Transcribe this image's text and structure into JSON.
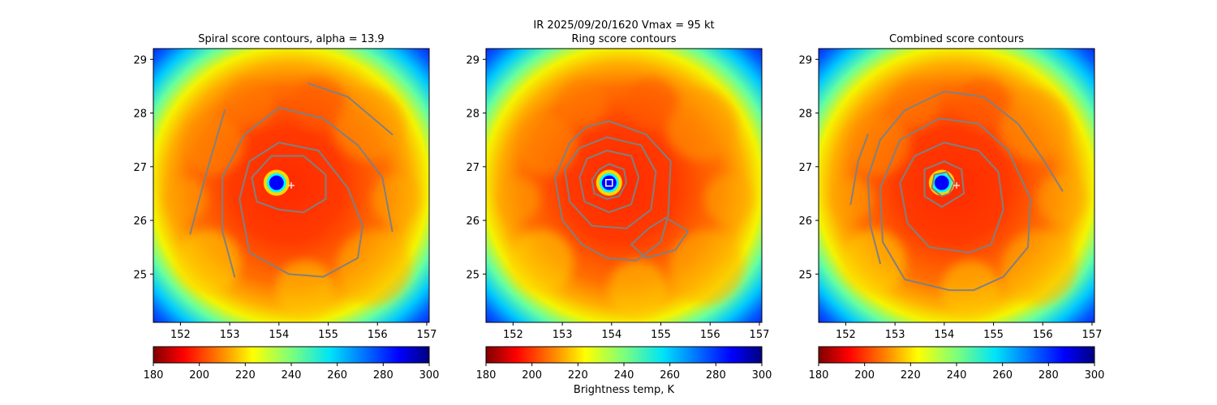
{
  "suptitle": "IR  2025/09/20/1620    Vmax = 95 kt",
  "colorbar_label": "Brightness temp, K",
  "chart_data": [
    {
      "type": "heatmap",
      "title": "Spiral score contours, alpha = 13.9",
      "x_ticks": [
        "152",
        "153",
        "154",
        "155",
        "156",
        "157"
      ],
      "y_ticks": [
        "25",
        "26",
        "27",
        "28",
        "29"
      ],
      "xlim": [
        151.45,
        157.05
      ],
      "ylim": [
        24.1,
        29.2
      ],
      "colorbar": {
        "ticks": [
          "180",
          "200",
          "220",
          "240",
          "260",
          "280",
          "300"
        ],
        "range": [
          180,
          300
        ],
        "colormap": "jet_r"
      },
      "eye": {
        "lon": 153.95,
        "lat": 26.7
      },
      "center_marker": {
        "symbol": "+",
        "lon": 154.25,
        "lat": 26.65,
        "color": "#ffffff"
      },
      "contours": [
        {
          "color": "#808080",
          "points": [
            [
              152.2,
              25.75
            ],
            [
              152.5,
              26.8
            ],
            [
              152.9,
              28.05
            ]
          ]
        },
        {
          "color": "#808080",
          "points": [
            [
              153.1,
              24.95
            ],
            [
              152.85,
              25.8
            ],
            [
              152.85,
              26.8
            ],
            [
              153.3,
              27.6
            ],
            [
              154.0,
              28.1
            ],
            [
              154.9,
              27.9
            ],
            [
              155.6,
              27.4
            ],
            [
              156.1,
              26.8
            ],
            [
              156.3,
              25.8
            ]
          ]
        },
        {
          "color": "#808080",
          "points": [
            [
              154.6,
              28.55
            ],
            [
              155.4,
              28.3
            ],
            [
              156.3,
              27.6
            ]
          ]
        },
        {
          "color": "#808080",
          "points": [
            [
              154.2,
              25.0
            ],
            [
              153.4,
              25.4
            ],
            [
              153.2,
              26.4
            ],
            [
              153.4,
              27.1
            ],
            [
              154.0,
              27.45
            ],
            [
              154.8,
              27.3
            ],
            [
              155.4,
              26.6
            ],
            [
              155.7,
              25.9
            ],
            [
              155.6,
              25.3
            ],
            [
              154.9,
              24.95
            ],
            [
              154.2,
              25.0
            ]
          ]
        },
        {
          "color": "#808080",
          "points": [
            [
              154.0,
              26.2
            ],
            [
              153.55,
              26.35
            ],
            [
              153.45,
              26.8
            ],
            [
              153.85,
              27.2
            ],
            [
              154.5,
              27.2
            ],
            [
              154.95,
              26.85
            ],
            [
              154.95,
              26.4
            ],
            [
              154.5,
              26.15
            ],
            [
              154.0,
              26.2
            ]
          ]
        }
      ]
    },
    {
      "type": "heatmap",
      "title": "Ring score contours",
      "x_ticks": [
        "152",
        "153",
        "154",
        "155",
        "156",
        "157"
      ],
      "y_ticks": [
        "25",
        "26",
        "27",
        "28",
        "29"
      ],
      "xlim": [
        151.45,
        157.05
      ],
      "ylim": [
        24.1,
        29.2
      ],
      "colorbar": {
        "ticks": [
          "180",
          "200",
          "220",
          "240",
          "260",
          "280",
          "300"
        ],
        "range": [
          180,
          300
        ],
        "colormap": "jet_r"
      },
      "eye": {
        "lon": 153.95,
        "lat": 26.7
      },
      "center_marker": {
        "symbol": "square",
        "lon": 153.95,
        "lat": 26.7,
        "color": "#ffffff"
      },
      "contours": [
        {
          "color": "#808080",
          "points": [
            [
              153.95,
              27.05
            ],
            [
              154.25,
              26.95
            ],
            [
              154.3,
              26.7
            ],
            [
              154.15,
              26.45
            ],
            [
              153.9,
              26.4
            ],
            [
              153.65,
              26.5
            ],
            [
              153.6,
              26.75
            ],
            [
              153.75,
              26.95
            ],
            [
              153.95,
              27.05
            ]
          ]
        },
        {
          "color": "#808080",
          "points": [
            [
              153.9,
              27.3
            ],
            [
              154.4,
              27.2
            ],
            [
              154.55,
              26.8
            ],
            [
              154.4,
              26.3
            ],
            [
              153.95,
              26.15
            ],
            [
              153.45,
              26.35
            ],
            [
              153.35,
              26.8
            ],
            [
              153.5,
              27.15
            ],
            [
              153.9,
              27.3
            ]
          ]
        },
        {
          "color": "#808080",
          "points": [
            [
              153.9,
              27.55
            ],
            [
              154.6,
              27.4
            ],
            [
              154.9,
              26.9
            ],
            [
              154.8,
              26.2
            ],
            [
              154.3,
              25.85
            ],
            [
              153.6,
              25.9
            ],
            [
              153.15,
              26.35
            ],
            [
              153.05,
              26.95
            ],
            [
              153.35,
              27.35
            ],
            [
              153.9,
              27.55
            ]
          ]
        },
        {
          "color": "#808080",
          "points": [
            [
              153.95,
              27.85
            ],
            [
              154.7,
              27.6
            ],
            [
              155.2,
              27.1
            ],
            [
              155.15,
              26.1
            ],
            [
              155.0,
              25.6
            ],
            [
              154.5,
              25.25
            ],
            [
              153.9,
              25.3
            ],
            [
              153.4,
              25.55
            ],
            [
              153.0,
              26.0
            ],
            [
              152.85,
              26.8
            ],
            [
              153.15,
              27.45
            ],
            [
              153.5,
              27.75
            ],
            [
              153.95,
              27.85
            ]
          ]
        },
        {
          "color": "#808080",
          "points": [
            [
              155.1,
              26.05
            ],
            [
              155.55,
              25.8
            ],
            [
              155.3,
              25.45
            ],
            [
              154.7,
              25.3
            ],
            [
              154.4,
              25.55
            ],
            [
              154.75,
              25.85
            ],
            [
              155.1,
              26.05
            ]
          ]
        }
      ]
    },
    {
      "type": "heatmap",
      "title": "Combined score contours",
      "x_ticks": [
        "152",
        "153",
        "154",
        "155",
        "156",
        "157"
      ],
      "y_ticks": [
        "25",
        "26",
        "27",
        "28",
        "29"
      ],
      "xlim": [
        151.45,
        157.05
      ],
      "ylim": [
        24.1,
        29.2
      ],
      "colorbar": {
        "ticks": [
          "180",
          "200",
          "220",
          "240",
          "260",
          "280",
          "300"
        ],
        "range": [
          180,
          300
        ],
        "colormap": "jet_r"
      },
      "eye": {
        "lon": 153.95,
        "lat": 26.7
      },
      "center_marker": {
        "symbol": "+",
        "lon": 154.25,
        "lat": 26.65,
        "color": "#ffffff"
      },
      "contours": [
        {
          "color": "#808080",
          "points": [
            [
              152.1,
              26.3
            ],
            [
              152.25,
              27.1
            ],
            [
              152.45,
              27.6
            ]
          ]
        },
        {
          "color": "#808080",
          "points": [
            [
              152.7,
              25.2
            ],
            [
              152.5,
              25.9
            ],
            [
              152.45,
              26.8
            ],
            [
              152.7,
              27.5
            ],
            [
              153.2,
              28.05
            ],
            [
              154.0,
              28.4
            ],
            [
              154.8,
              28.3
            ],
            [
              155.5,
              27.8
            ],
            [
              156.0,
              27.15
            ],
            [
              156.4,
              26.55
            ]
          ]
        },
        {
          "color": "#808080",
          "points": [
            [
              154.1,
              24.7
            ],
            [
              153.2,
              24.9
            ],
            [
              152.75,
              25.6
            ],
            [
              152.7,
              26.6
            ],
            [
              153.1,
              27.5
            ],
            [
              153.9,
              27.9
            ],
            [
              154.7,
              27.8
            ],
            [
              155.3,
              27.3
            ],
            [
              155.75,
              26.4
            ],
            [
              155.7,
              25.5
            ],
            [
              155.2,
              24.95
            ],
            [
              154.6,
              24.7
            ],
            [
              154.1,
              24.7
            ]
          ]
        },
        {
          "color": "#808080",
          "points": [
            [
              154.5,
              25.4
            ],
            [
              153.7,
              25.5
            ],
            [
              153.25,
              25.95
            ],
            [
              153.1,
              26.7
            ],
            [
              153.4,
              27.2
            ],
            [
              154.0,
              27.45
            ],
            [
              154.7,
              27.3
            ],
            [
              155.1,
              26.9
            ],
            [
              155.2,
              26.2
            ],
            [
              154.95,
              25.55
            ],
            [
              154.5,
              25.4
            ]
          ]
        },
        {
          "color": "#808080",
          "points": [
            [
              153.95,
              26.25
            ],
            [
              153.6,
              26.45
            ],
            [
              153.6,
              26.95
            ],
            [
              154.0,
              27.1
            ],
            [
              154.35,
              26.95
            ],
            [
              154.4,
              26.5
            ],
            [
              153.95,
              26.25
            ]
          ]
        },
        {
          "color": "#808080",
          "points": [
            [
              153.95,
              26.45
            ],
            [
              153.75,
              26.6
            ],
            [
              153.8,
              26.85
            ],
            [
              154.05,
              26.9
            ],
            [
              154.2,
              26.7
            ],
            [
              154.1,
              26.5
            ],
            [
              153.95,
              26.45
            ]
          ]
        }
      ]
    }
  ]
}
